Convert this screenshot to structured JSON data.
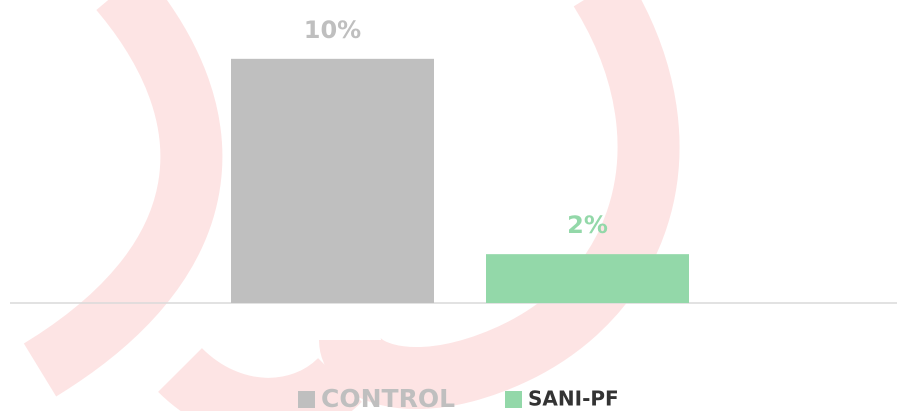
{
  "chart_data": {
    "type": "bar",
    "categories": [
      null
    ],
    "series": [
      {
        "name": "CONTROL",
        "color": "#bfbfbf",
        "values": [
          10
        ],
        "value_labels": [
          "10%"
        ]
      },
      {
        "name": "SANI-PF",
        "color": "#93d8a9",
        "values": [
          2
        ],
        "value_labels": [
          "2%"
        ]
      }
    ],
    "ylim": [
      0,
      12
    ]
  }
}
